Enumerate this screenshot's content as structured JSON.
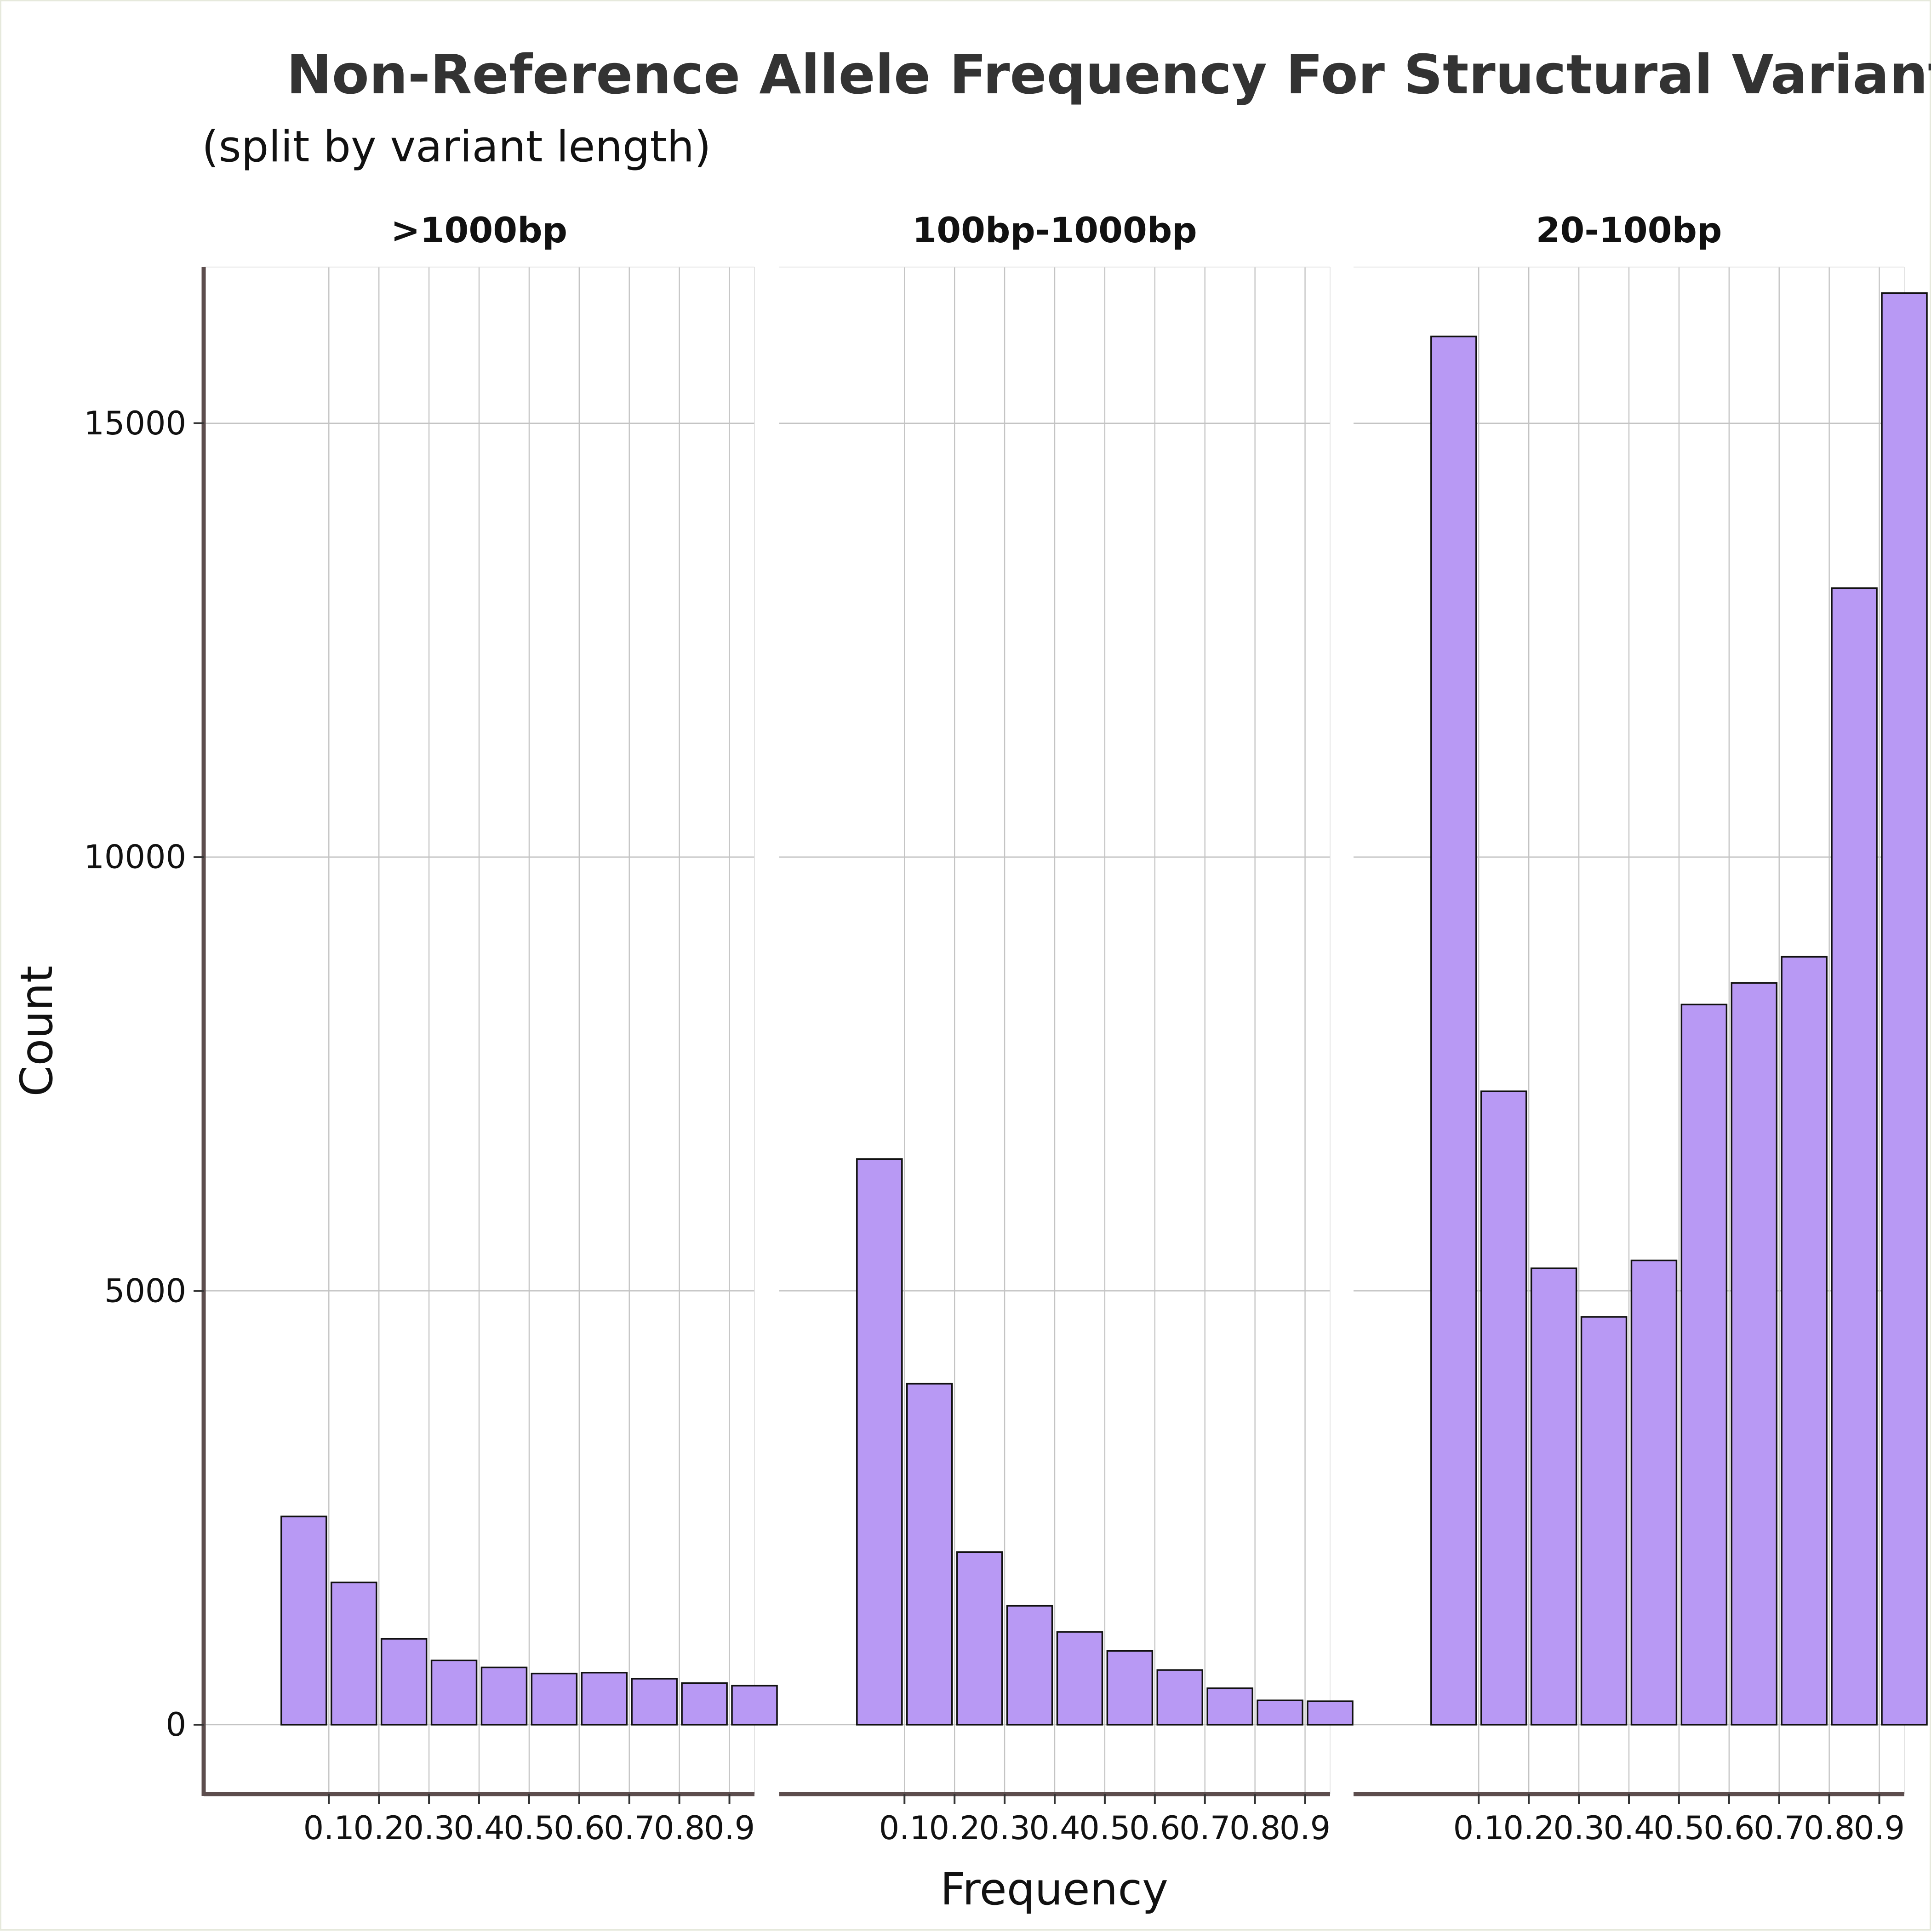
{
  "chart_data": {
    "type": "bar",
    "title": "Non-Reference Allele Frequency For Structural Variants",
    "subtitle": "(split by variant length)",
    "xlabel": "Frequency",
    "ylabel": "Count",
    "x_tick_labels": [
      "0.1",
      "0.2",
      "0.3",
      "0.4",
      "0.5",
      "0.6",
      "0.7",
      "0.8",
      "0.9"
    ],
    "x_ticks": [
      0.1,
      0.2,
      0.3,
      0.4,
      0.5,
      0.6,
      0.7,
      0.8,
      0.9
    ],
    "y_tick_labels": [
      "0",
      "5000",
      "10000",
      "15000"
    ],
    "y_ticks": [
      0,
      5000,
      10000,
      15000
    ],
    "xlim": [
      -0.15,
      0.95
    ],
    "ylim": [
      -800,
      16800
    ],
    "bar_centers": [
      0.05,
      0.15,
      0.25,
      0.35,
      0.45,
      0.55,
      0.65,
      0.75,
      0.85,
      0.95
    ],
    "bar_width": 0.09,
    "bar_color": "#b899f4",
    "bar_outline_color": "#111111",
    "panels": [
      {
        "label": ">1000bp",
        "values": [
          2400,
          1640,
          990,
          740,
          660,
          590,
          600,
          530,
          480,
          450
        ]
      },
      {
        "label": "100bp-1000bp",
        "values": [
          6520,
          3930,
          1990,
          1370,
          1070,
          850,
          630,
          420,
          280,
          270
        ]
      },
      {
        "label": "20-100bp",
        "values": [
          16000,
          7300,
          5260,
          4700,
          5350,
          8300,
          8550,
          8850,
          13100,
          16500
        ]
      }
    ],
    "grid": true,
    "legend": "none"
  }
}
